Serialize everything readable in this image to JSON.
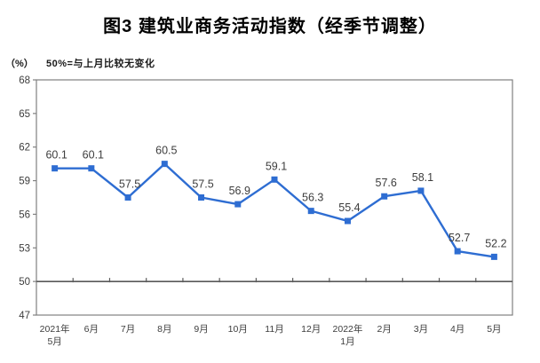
{
  "figure": {
    "title": "图3 建筑业商务活动指数（经季节调整）",
    "unit_label": "（%）",
    "note": "50%=与上月比较无变化"
  },
  "colors": {
    "series": "#2E6DD2",
    "frame": "#808080",
    "reference_line": "#595959",
    "axis_text": "#3D3D3D",
    "data_label_text": "#3D3D3D",
    "title_text": "#000000"
  },
  "chart_data": {
    "type": "line",
    "title": "图3 建筑业商务活动指数（经季节调整）",
    "subtitle": "50%=与上月比较无变化",
    "ylabel": "（%）",
    "xlabel": "",
    "categories": [
      "2021年|5月",
      "6月",
      "7月",
      "8月",
      "9月",
      "10月",
      "11月",
      "12月",
      "2022年|1月",
      "2月",
      "3月",
      "4月",
      "5月"
    ],
    "values": [
      60.1,
      60.1,
      57.5,
      60.5,
      57.5,
      56.9,
      59.1,
      56.3,
      55.4,
      57.6,
      58.1,
      52.7,
      52.2
    ],
    "ylim": [
      47,
      68
    ],
    "ytick_step": 3,
    "reference_line": 50,
    "grid": false,
    "legend": "none",
    "data_labels": true,
    "marker": "square"
  }
}
